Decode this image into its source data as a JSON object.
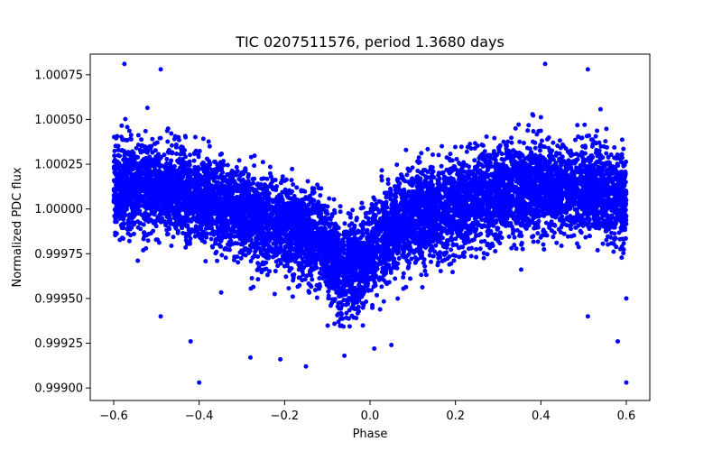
{
  "chart_data": {
    "type": "scatter",
    "title": "TIC 0207511576, period 1.3680 days",
    "xlabel": "Phase",
    "ylabel": "Normalized PDC flux",
    "xlim": [
      -0.655,
      0.655
    ],
    "ylim": [
      0.99893,
      1.000865
    ],
    "x_ticks": [
      -0.6,
      -0.4,
      -0.2,
      0.0,
      0.2,
      0.4,
      0.6
    ],
    "x_tick_labels": [
      "−0.6",
      "−0.4",
      "−0.2",
      "0.0",
      "0.2",
      "0.4",
      "0.6"
    ],
    "y_ticks": [
      0.999,
      0.99925,
      0.9995,
      0.99975,
      1.0,
      1.00025,
      1.0005,
      1.00075
    ],
    "y_tick_labels": [
      "0.99900",
      "0.99925",
      "0.99950",
      "0.99975",
      "1.00000",
      "1.00025",
      "1.00050",
      "1.00075"
    ],
    "marker_color": "#0000ff",
    "grid": false,
    "series": [
      {
        "name": "flux",
        "model": {
          "baseline": 1.0,
          "phase_min": -0.6,
          "phase_max": 0.6,
          "sinusoid_amplitude": 0.00012,
          "sinusoid_center_phase": -0.575,
          "transit_center_phase": -0.05,
          "transit_depth": 0.00022,
          "transit_width": 0.07,
          "noise_sigma": 0.000125,
          "n_points": 9000
        },
        "notable_points": [
          {
            "x": -0.575,
            "y": 1.00081
          },
          {
            "x": 0.41,
            "y": 1.00081
          },
          {
            "x": -0.49,
            "y": 1.00078
          },
          {
            "x": 0.51,
            "y": 1.00078
          },
          {
            "x": -0.4,
            "y": 0.99903
          },
          {
            "x": 0.6,
            "y": 0.99903
          },
          {
            "x": -0.15,
            "y": 0.99912
          },
          {
            "x": -0.21,
            "y": 0.99916
          },
          {
            "x": -0.42,
            "y": 0.99926
          },
          {
            "x": 0.58,
            "y": 0.99926
          },
          {
            "x": -0.06,
            "y": 0.99918
          },
          {
            "x": 0.01,
            "y": 0.99922
          },
          {
            "x": 0.05,
            "y": 0.99924
          },
          {
            "x": -0.28,
            "y": 0.99917
          },
          {
            "x": -0.49,
            "y": 0.9994
          },
          {
            "x": 0.51,
            "y": 0.9994
          },
          {
            "x": 0.6,
            "y": 0.9995
          }
        ]
      }
    ]
  }
}
